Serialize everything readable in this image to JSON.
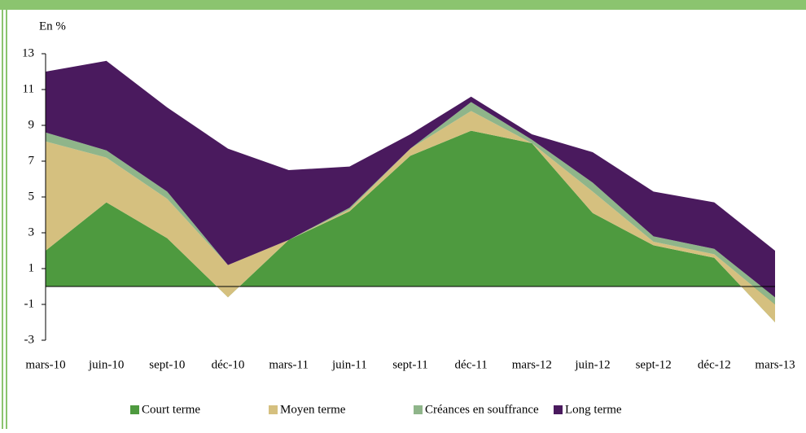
{
  "chart_data": {
    "type": "stacked_area",
    "axis_label": "En %",
    "categories": [
      "mars-10",
      "juin-10",
      "sept-10",
      "déc-10",
      "mars-11",
      "juin-11",
      "sept-11",
      "déc-11",
      "mars-12",
      "juin-12",
      "sept-12",
      "déc-12",
      "mars-13"
    ],
    "series": [
      {
        "name": "Court terme",
        "color": "#4e9a3f",
        "values": [
          2.0,
          4.7,
          2.7,
          -0.6,
          2.6,
          4.2,
          7.3,
          8.7,
          8.0,
          4.1,
          2.3,
          1.6,
          -2.0
        ]
      },
      {
        "name": "Moyen terme",
        "color": "#d5c07f",
        "values": [
          6.1,
          2.5,
          2.2,
          1.8,
          0,
          0.1,
          0.4,
          1.1,
          0,
          1.2,
          0.2,
          0.2,
          1.0
        ]
      },
      {
        "name": "Créances en souffrance",
        "color": "#8fb58a",
        "values": [
          0.5,
          0.4,
          0.4,
          0,
          0,
          0.1,
          0,
          0.5,
          0.2,
          0.5,
          0.3,
          0.3,
          0.4
        ]
      },
      {
        "name": "Long terme",
        "color": "#4a1a5e",
        "values": [
          3.4,
          5.0,
          4.7,
          6.5,
          3.9,
          2.3,
          0.8,
          0.3,
          0.3,
          1.7,
          2.5,
          2.6,
          2.6
        ]
      }
    ],
    "ylim": [
      -3,
      13
    ],
    "yticks": [
      -3,
      -1,
      1,
      3,
      5,
      7,
      9,
      11,
      13
    ]
  }
}
